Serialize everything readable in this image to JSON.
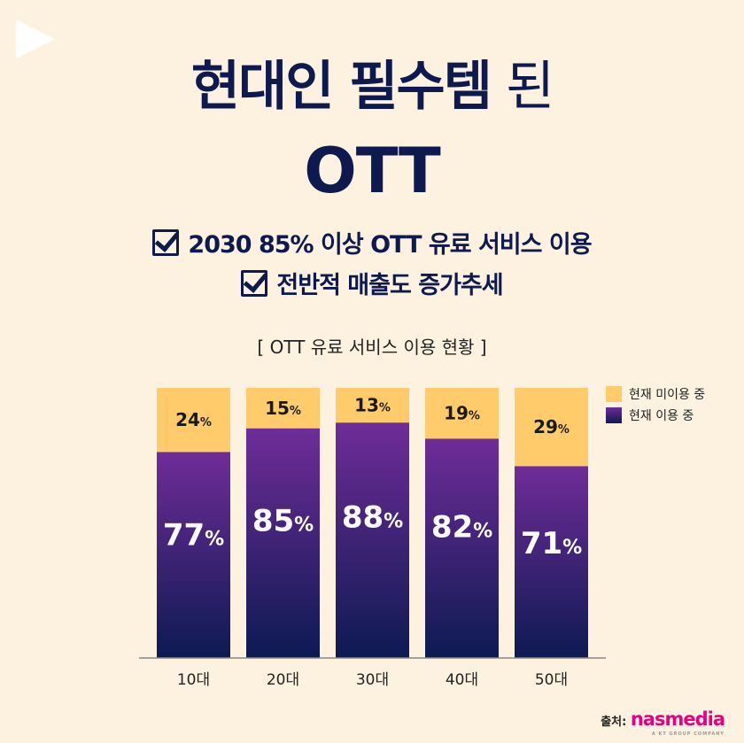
{
  "title": {
    "bold": "현대인 필수템",
    "light": " 된",
    "line2": "OTT"
  },
  "bullets": [
    "2030 85% 이상 OTT 유료 서비스 이용",
    "전반적 매출도 증가추세"
  ],
  "colors": {
    "background": "#FDF2DF",
    "navy": "#0E1A4F",
    "not_using": "#FFCB6B",
    "using_top": "#6F2C98",
    "using_bottom": "#0D1A52"
  },
  "source": {
    "label": "출처:",
    "brand": "nasmedia",
    "tagline": "A KT GROUP COMPANY"
  },
  "chart_data": {
    "type": "bar",
    "stacked": true,
    "title": "[ OTT 유료 서비스 이용 현황 ]",
    "categories": [
      "10대",
      "20대",
      "30대",
      "40대",
      "50대"
    ],
    "series": [
      {
        "name": "현재 이용 중",
        "values": [
          77,
          85,
          88,
          82,
          71
        ],
        "color": "#6F2C98"
      },
      {
        "name": "현재 미이용 중",
        "values": [
          24,
          15,
          13,
          19,
          29
        ],
        "color": "#FFCB6B"
      }
    ],
    "unit": "%",
    "legend_position": "right-top",
    "grid": false
  }
}
